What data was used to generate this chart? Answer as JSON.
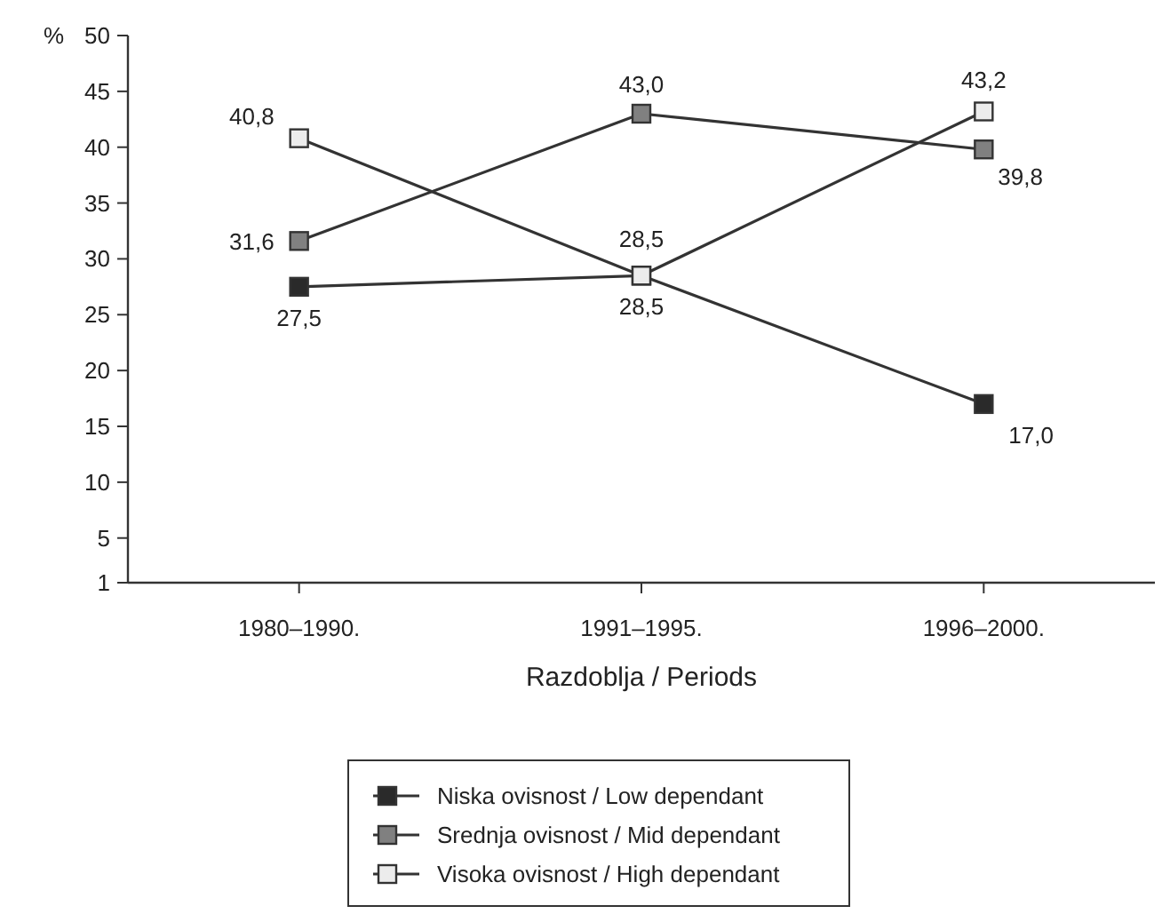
{
  "chart_data": {
    "type": "line",
    "xlabel": "Razdoblja / Periods",
    "ylabel": "%",
    "categories": [
      "1980–1990.",
      "1991–1995.",
      "1996–2000."
    ],
    "series": [
      {
        "name": "Niska ovisnost / Low dependant",
        "color": "#2a2a2a",
        "values": [
          27.5,
          28.5,
          17.0
        ],
        "value_labels": [
          "27,5",
          "28,5",
          "17,0"
        ]
      },
      {
        "name": "Srednja ovisnost / Mid dependant",
        "color": "#808080",
        "values": [
          31.6,
          43.0,
          39.8
        ],
        "value_labels": [
          "31,6",
          "43,0",
          "39,8"
        ]
      },
      {
        "name": "Visoka ovisnost / High dependant",
        "color": "#ececec",
        "values": [
          40.8,
          28.5,
          43.2
        ],
        "value_labels": [
          "40,8",
          "28,5",
          "43,2"
        ]
      }
    ],
    "ylim": [
      1,
      50
    ],
    "yticks": [
      1,
      5,
      10,
      15,
      20,
      25,
      30,
      35,
      40,
      45,
      50
    ],
    "grid": false,
    "legend": "bottom",
    "marker": "square",
    "line_style": "solid"
  }
}
